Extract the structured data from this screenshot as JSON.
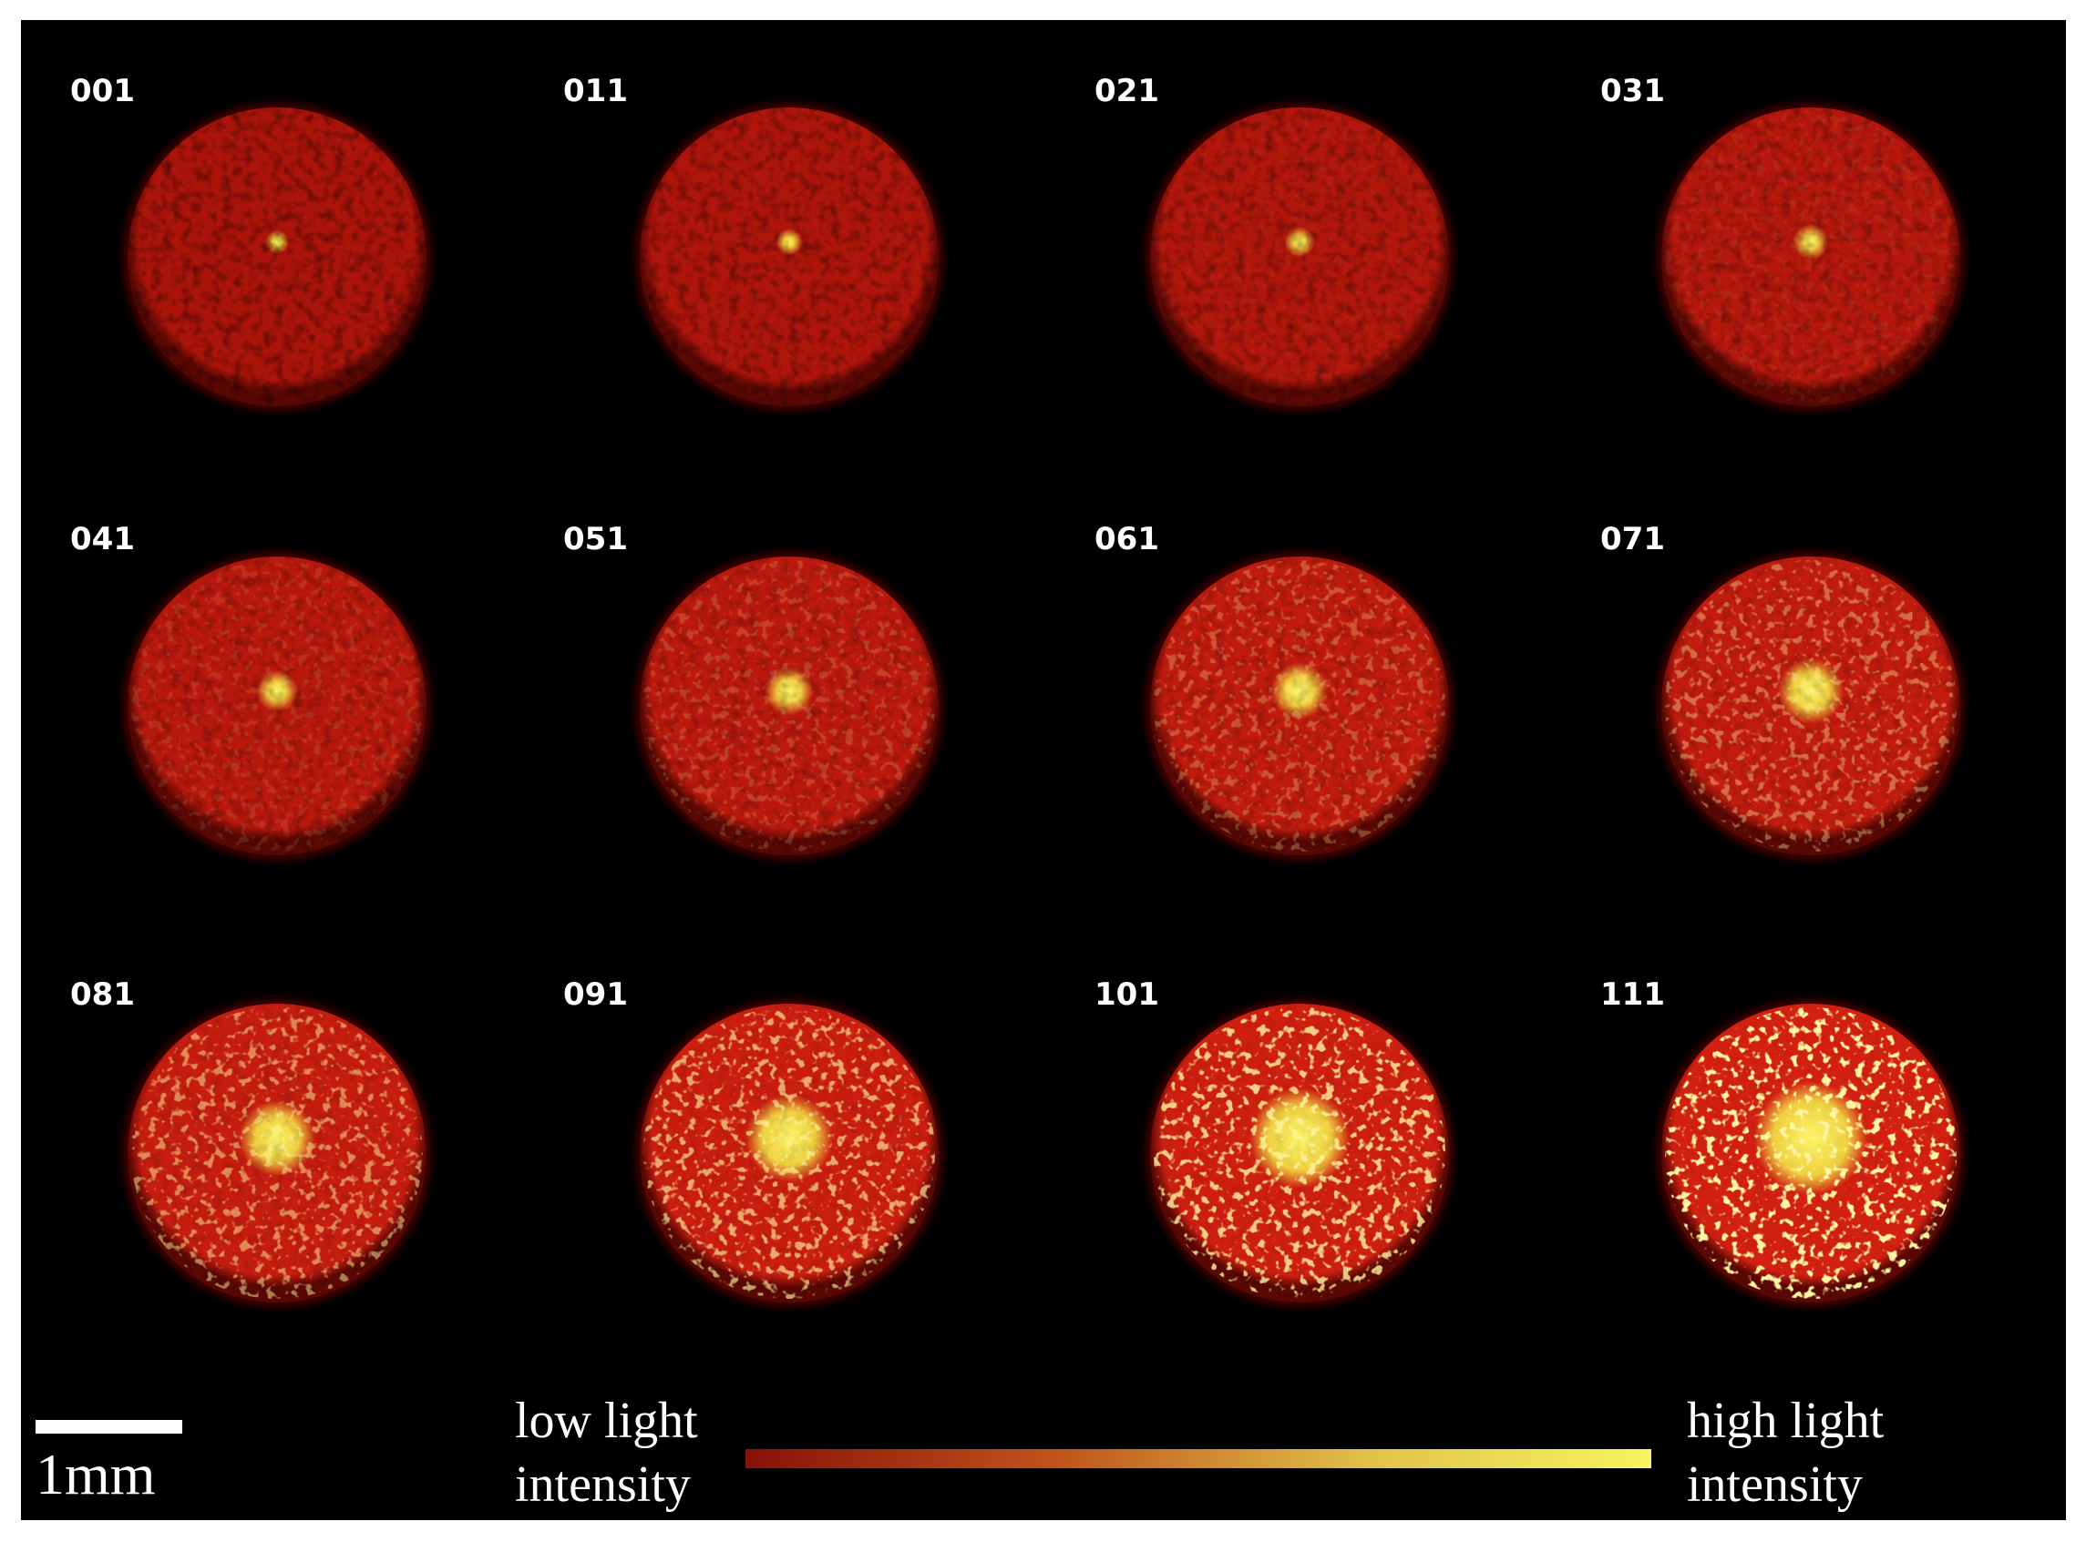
{
  "panels": [
    "001",
    "011",
    "021",
    "031",
    "041",
    "051",
    "061",
    "071",
    "081",
    "091",
    "101",
    "111"
  ],
  "scale_bar": {
    "label": "1mm"
  },
  "colorbar": {
    "low": [
      "low light",
      "intensity"
    ],
    "high": [
      "high light",
      "intensity"
    ]
  }
}
